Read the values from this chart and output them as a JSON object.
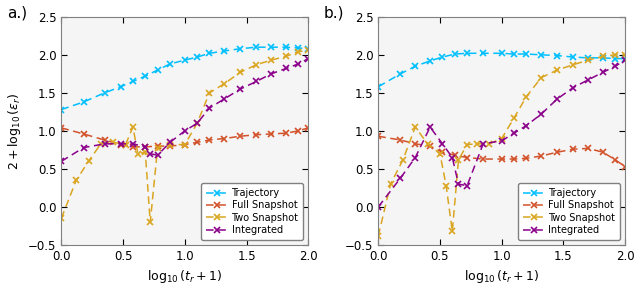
{
  "panel_a": {
    "trajectory": {
      "x": [
        0.0,
        0.18,
        0.35,
        0.48,
        0.58,
        0.68,
        0.78,
        0.88,
        1.0,
        1.1,
        1.2,
        1.32,
        1.45,
        1.58,
        1.7,
        1.82,
        1.92,
        2.0
      ],
      "y": [
        1.28,
        1.38,
        1.5,
        1.58,
        1.65,
        1.72,
        1.8,
        1.88,
        1.93,
        1.97,
        2.02,
        2.05,
        2.08,
        2.1,
        2.1,
        2.1,
        2.09,
        2.08
      ]
    },
    "full_snapshot": {
      "x": [
        0.0,
        0.18,
        0.35,
        0.48,
        0.58,
        0.68,
        0.78,
        0.88,
        1.0,
        1.1,
        1.2,
        1.32,
        1.45,
        1.58,
        1.7,
        1.82,
        1.92,
        2.0
      ],
      "y": [
        1.04,
        0.96,
        0.88,
        0.82,
        0.79,
        0.79,
        0.8,
        0.8,
        0.82,
        0.85,
        0.88,
        0.9,
        0.93,
        0.95,
        0.96,
        0.97,
        1.0,
        1.04
      ]
    },
    "two_snapshot": {
      "x": [
        0.0,
        0.12,
        0.22,
        0.32,
        0.42,
        0.52,
        0.58,
        0.62,
        0.68,
        0.72,
        0.78,
        0.88,
        1.0,
        1.1,
        1.2,
        1.32,
        1.45,
        1.58,
        1.7,
        1.82,
        1.92,
        2.0
      ],
      "y": [
        -0.15,
        0.35,
        0.6,
        0.83,
        0.85,
        0.82,
        1.05,
        0.7,
        0.72,
        -0.2,
        0.78,
        0.82,
        0.82,
        1.1,
        1.5,
        1.62,
        1.77,
        1.87,
        1.93,
        1.98,
        2.04,
        2.06
      ]
    },
    "integrated": {
      "x": [
        0.0,
        0.18,
        0.35,
        0.48,
        0.58,
        0.68,
        0.72,
        0.78,
        0.88,
        1.0,
        1.1,
        1.2,
        1.32,
        1.45,
        1.58,
        1.7,
        1.82,
        1.92,
        2.0
      ],
      "y": [
        0.6,
        0.78,
        0.83,
        0.83,
        0.83,
        0.79,
        0.7,
        0.68,
        0.85,
        1.0,
        1.1,
        1.3,
        1.42,
        1.55,
        1.65,
        1.75,
        1.82,
        1.88,
        1.95
      ]
    },
    "label": "a.)"
  },
  "panel_b": {
    "trajectory": {
      "x": [
        0.0,
        0.18,
        0.3,
        0.42,
        0.52,
        0.62,
        0.72,
        0.85,
        1.0,
        1.1,
        1.2,
        1.32,
        1.45,
        1.58,
        1.7,
        1.82,
        1.92,
        2.0
      ],
      "y": [
        1.58,
        1.75,
        1.85,
        1.92,
        1.97,
        2.01,
        2.02,
        2.02,
        2.02,
        2.01,
        2.01,
        2.0,
        1.99,
        1.97,
        1.96,
        1.96,
        1.95,
        1.95
      ]
    },
    "full_snapshot": {
      "x": [
        0.0,
        0.18,
        0.3,
        0.42,
        0.52,
        0.62,
        0.72,
        0.85,
        1.0,
        1.1,
        1.2,
        1.32,
        1.45,
        1.58,
        1.7,
        1.82,
        1.92,
        2.0
      ],
      "y": [
        0.93,
        0.88,
        0.83,
        0.8,
        0.72,
        0.68,
        0.65,
        0.63,
        0.63,
        0.63,
        0.64,
        0.67,
        0.72,
        0.76,
        0.77,
        0.72,
        0.62,
        0.53
      ]
    },
    "two_snapshot": {
      "x": [
        0.0,
        0.1,
        0.2,
        0.3,
        0.4,
        0.5,
        0.55,
        0.6,
        0.65,
        0.72,
        0.8,
        0.9,
        1.0,
        1.1,
        1.2,
        1.32,
        1.45,
        1.58,
        1.7,
        1.82,
        1.92,
        2.0
      ],
      "y": [
        -0.38,
        0.3,
        0.62,
        1.05,
        0.83,
        0.7,
        0.28,
        -0.32,
        0.62,
        0.82,
        0.83,
        0.83,
        0.9,
        1.17,
        1.45,
        1.7,
        1.8,
        1.87,
        1.93,
        1.98,
        2.0,
        2.0
      ]
    },
    "integrated": {
      "x": [
        0.0,
        0.18,
        0.3,
        0.42,
        0.52,
        0.6,
        0.65,
        0.72,
        0.85,
        1.0,
        1.1,
        1.2,
        1.32,
        1.45,
        1.58,
        1.7,
        1.82,
        1.92,
        2.0
      ],
      "y": [
        0.0,
        0.38,
        0.65,
        1.05,
        0.83,
        0.65,
        0.3,
        0.28,
        0.83,
        0.87,
        0.97,
        1.07,
        1.22,
        1.42,
        1.57,
        1.67,
        1.77,
        1.85,
        1.93
      ]
    },
    "label": "b.)"
  },
  "colors": {
    "trajectory": "#00BFFF",
    "full_snapshot": "#D2522A",
    "two_snapshot": "#DAA520",
    "integrated": "#8B008B"
  },
  "ylim": [
    -0.5,
    2.5
  ],
  "xlim": [
    0,
    2
  ],
  "ylabel": "$2 + \\log_{10}(\\varepsilon_r)$",
  "xlabel": "$\\log_{10}(t_r + 1)$",
  "legend_labels": [
    "Trajectory",
    "Full Snapshot",
    "Two Snapshot",
    "Integrated"
  ],
  "yticks": [
    -0.5,
    0.0,
    0.5,
    1.0,
    1.5,
    2.0,
    2.5
  ],
  "xticks": [
    0,
    0.5,
    1.0,
    1.5,
    2.0
  ]
}
